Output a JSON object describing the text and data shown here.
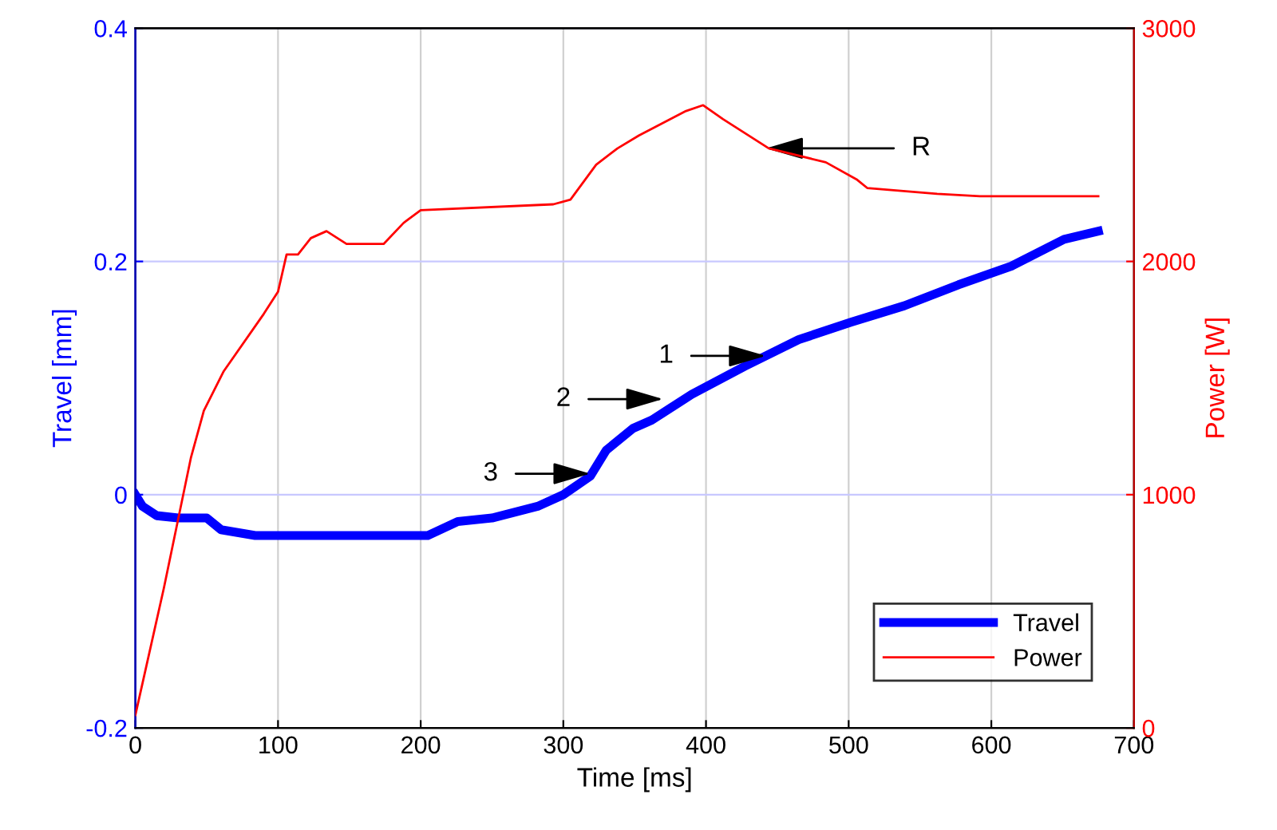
{
  "chart_data": {
    "type": "line",
    "xlabel": "Time [ms]",
    "ylabel": "Travel [mm]",
    "y2label": "Power [W]",
    "xlim": [
      0,
      700
    ],
    "xticks": [
      0,
      100,
      200,
      300,
      400,
      500,
      600,
      700
    ],
    "ylim": [
      -0.2,
      0.4
    ],
    "yticks": [
      {
        "value": -0.2,
        "label": "-0.2"
      },
      0,
      0.2,
      0.4
    ],
    "y2lim": [
      0,
      3000
    ],
    "y2ticks": [
      0,
      1000,
      2000,
      3000
    ],
    "grid": true,
    "legend": "bottom right",
    "line_style": "solid",
    "marker": "none",
    "series": [
      {
        "name": "Travel",
        "color": "#0000ff",
        "x": [
          0,
          5,
          15,
          30,
          50,
          60,
          84,
          120,
          186,
          205,
          226,
          250,
          282,
          300,
          319,
          330,
          349,
          362,
          390,
          427,
          465,
          502,
          539,
          577,
          614,
          651,
          675
        ],
        "values": [
          0,
          -0.01,
          -0.018,
          -0.02,
          -0.02,
          -0.03,
          -0.035,
          -0.035,
          -0.035,
          -0.035,
          -0.023,
          -0.02,
          -0.01,
          0,
          0.016,
          0.038,
          0.057,
          0.064,
          0.086,
          0.11,
          0.133,
          0.148,
          0.162,
          0.18,
          0.196,
          0.219,
          0.226
        ]
      },
      {
        "name": "Power",
        "color": "#ff0000",
        "axis": "y2",
        "x": [
          0,
          20,
          39,
          48,
          62,
          90,
          100,
          106,
          114,
          123,
          134,
          148,
          174,
          188,
          200,
          293,
          305,
          323,
          338,
          353,
          386,
          398,
          412,
          444,
          484,
          506,
          513,
          562,
          592,
          675
        ],
        "values": [
          55,
          600,
          1160,
          1360,
          1530,
          1775,
          1870,
          2030,
          2030,
          2100,
          2130,
          2075,
          2075,
          2165,
          2220,
          2245,
          2265,
          2415,
          2485,
          2540,
          2645,
          2670,
          2610,
          2485,
          2425,
          2350,
          2315,
          2290,
          2280,
          2280
        ]
      }
    ],
    "annotations": [
      {
        "text": "1",
        "x": 442,
        "y": 0.119
      },
      {
        "text": "2",
        "x": 370,
        "y": 0.082
      },
      {
        "text": "3",
        "x": 319,
        "y": 0.018
      },
      {
        "text": "R",
        "x": 442,
        "y": 0.297
      }
    ]
  }
}
